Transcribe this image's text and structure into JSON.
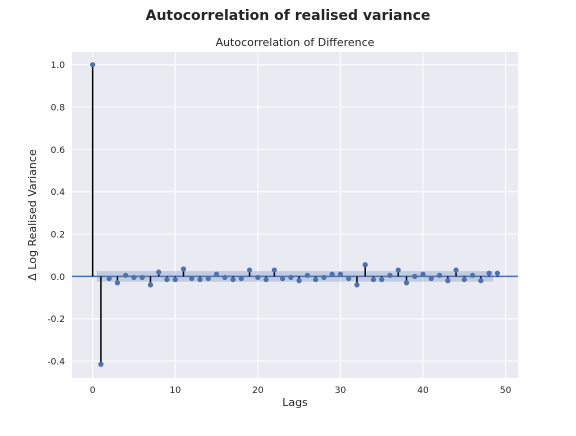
{
  "figure": {
    "suptitle": "Autocorrelation of realised variance"
  },
  "chart_data": {
    "type": "scatter",
    "subtype": "acf-stem",
    "title": "Autocorrelation of Difference",
    "xlabel": "Lags",
    "ylabel": "Δ Log Realised Variance",
    "xlim": [
      -2.5,
      51.5
    ],
    "ylim": [
      -0.48,
      1.06
    ],
    "xticks": [
      0,
      10,
      20,
      30,
      40,
      50
    ],
    "yticks": [
      1.0,
      0.8,
      0.6,
      0.4,
      0.2,
      0.0,
      -0.2,
      -0.4
    ],
    "ytick_labels": [
      "1.0",
      "0.8",
      "0.6",
      "0.4",
      "0.2",
      "0.0",
      "-0.2",
      "-0.4"
    ],
    "grid": true,
    "confidence_band": 0.025,
    "lags": [
      0,
      1,
      2,
      3,
      4,
      5,
      6,
      7,
      8,
      9,
      10,
      11,
      12,
      13,
      14,
      15,
      16,
      17,
      18,
      19,
      20,
      21,
      22,
      23,
      24,
      25,
      26,
      27,
      28,
      29,
      30,
      31,
      32,
      33,
      34,
      35,
      36,
      37,
      38,
      39,
      40,
      41,
      42,
      43,
      44,
      45,
      46,
      47,
      48,
      49
    ],
    "values": [
      1.0,
      -0.415,
      -0.01,
      -0.03,
      0.005,
      -0.005,
      -0.005,
      -0.04,
      0.02,
      -0.015,
      -0.015,
      0.035,
      -0.01,
      -0.015,
      -0.01,
      0.01,
      -0.005,
      -0.015,
      -0.01,
      0.03,
      -0.005,
      -0.015,
      0.03,
      -0.01,
      -0.005,
      -0.02,
      0.005,
      -0.015,
      -0.005,
      0.01,
      0.01,
      -0.01,
      -0.04,
      0.055,
      -0.015,
      -0.015,
      0.005,
      0.03,
      -0.03,
      0.0,
      0.01,
      -0.01,
      0.005,
      -0.02,
      0.03,
      -0.015,
      0.005,
      -0.02,
      0.015,
      0.015
    ],
    "colors": {
      "axes_bg": "#EAEAF2",
      "grid": "#FFFFFF",
      "marker": "#4C72B0",
      "stem": "#000000",
      "band": "#4C72B0",
      "zero_line": "#4C72B0"
    }
  }
}
